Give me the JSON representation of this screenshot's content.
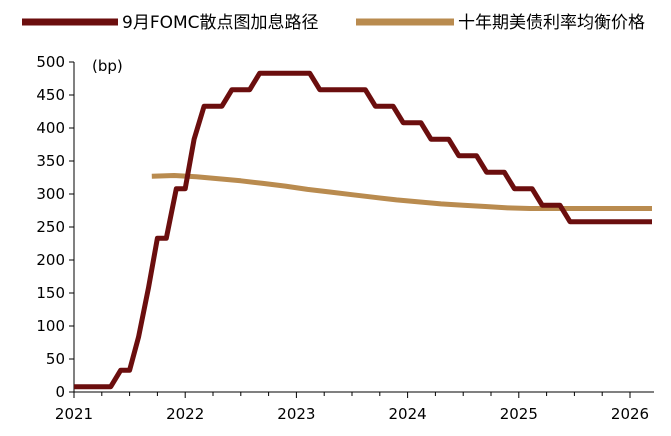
{
  "chart_data": {
    "type": "line",
    "y_unit": "(bp)",
    "ylim": [
      0,
      500
    ],
    "y_ticks": [
      0,
      50,
      100,
      150,
      200,
      250,
      300,
      350,
      400,
      450,
      500
    ],
    "xlim": [
      2021,
      2026.25
    ],
    "x_ticks": [
      2021,
      2022,
      2023,
      2024,
      2025,
      2026
    ],
    "grid": false,
    "legend_position": "top",
    "series": [
      {
        "name": "9月FOMC散点图加息路径",
        "color": "#6b0e0e",
        "points": [
          [
            2021.0,
            8
          ],
          [
            2021.33,
            8
          ],
          [
            2021.42,
            33
          ],
          [
            2021.5,
            33
          ],
          [
            2021.58,
            83
          ],
          [
            2021.67,
            158
          ],
          [
            2021.75,
            233
          ],
          [
            2021.83,
            233
          ],
          [
            2021.92,
            308
          ],
          [
            2022.0,
            308
          ],
          [
            2022.08,
            383
          ],
          [
            2022.17,
            433
          ],
          [
            2022.33,
            433
          ],
          [
            2022.42,
            458
          ],
          [
            2022.58,
            458
          ],
          [
            2022.67,
            483
          ],
          [
            2023.12,
            483
          ],
          [
            2023.21,
            458
          ],
          [
            2023.62,
            458
          ],
          [
            2023.71,
            433
          ],
          [
            2023.87,
            433
          ],
          [
            2023.96,
            408
          ],
          [
            2024.12,
            408
          ],
          [
            2024.21,
            383
          ],
          [
            2024.37,
            383
          ],
          [
            2024.46,
            358
          ],
          [
            2024.62,
            358
          ],
          [
            2024.71,
            333
          ],
          [
            2024.87,
            333
          ],
          [
            2024.96,
            308
          ],
          [
            2025.12,
            308
          ],
          [
            2025.21,
            283
          ],
          [
            2025.37,
            283
          ],
          [
            2025.46,
            258
          ],
          [
            2026.25,
            258
          ]
        ]
      },
      {
        "name": "十年期美债利率均衡价格",
        "color": "#b98b4f",
        "points": [
          [
            2021.7,
            327
          ],
          [
            2021.9,
            328
          ],
          [
            2022.1,
            326
          ],
          [
            2022.3,
            323
          ],
          [
            2022.5,
            320
          ],
          [
            2022.7,
            316
          ],
          [
            2022.9,
            312
          ],
          [
            2023.1,
            307
          ],
          [
            2023.3,
            303
          ],
          [
            2023.5,
            299
          ],
          [
            2023.7,
            295
          ],
          [
            2023.9,
            291
          ],
          [
            2024.1,
            288
          ],
          [
            2024.3,
            285
          ],
          [
            2024.5,
            283
          ],
          [
            2024.7,
            281
          ],
          [
            2024.9,
            279
          ],
          [
            2025.1,
            278
          ],
          [
            2025.3,
            278
          ],
          [
            2025.5,
            278
          ],
          [
            2025.8,
            278
          ],
          [
            2026.25,
            278
          ]
        ]
      }
    ]
  }
}
